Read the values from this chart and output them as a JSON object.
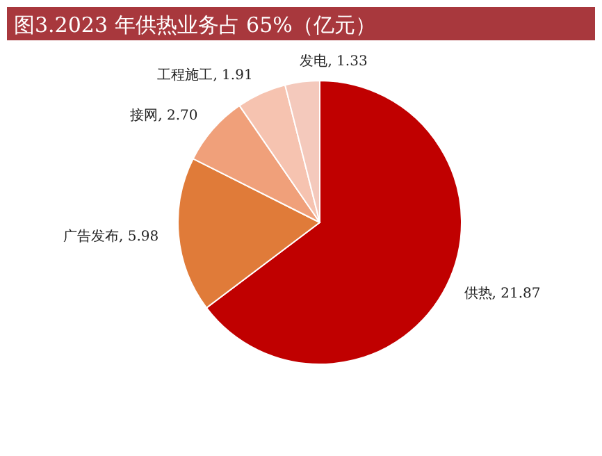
{
  "chart_data": {
    "type": "pie",
    "title": "图3.2023 年供热业务占 65%（亿元）",
    "categories": [
      "供热",
      "广告发布",
      "接网",
      "工程施工",
      "发电"
    ],
    "values": [
      21.87,
      5.98,
      2.7,
      1.91,
      1.33
    ],
    "value_labels": [
      "21.87",
      "5.98",
      "2.70",
      "1.91",
      "1.33"
    ],
    "colors": [
      "#c00000",
      "#e07b39",
      "#f0a07a",
      "#f6c3b0",
      "#f4c9bc"
    ]
  }
}
